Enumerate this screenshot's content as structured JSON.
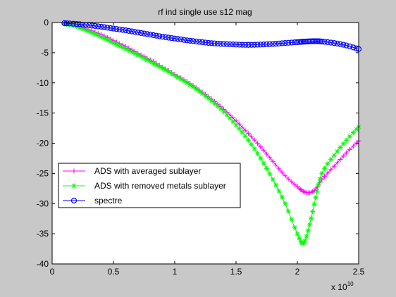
{
  "chart_data": {
    "type": "line",
    "title": "rf ind single use s12 mag",
    "xlabel": "",
    "ylabel": "",
    "x_exponent_label": "x 10",
    "x_exponent_power": "10",
    "xlim": [
      0,
      2.5
    ],
    "ylim": [
      -40,
      0
    ],
    "xticks": [
      0,
      0.5,
      1,
      1.5,
      2,
      2.5
    ],
    "xtick_labels": [
      "0",
      "0.5",
      "1",
      "1.5",
      "2",
      "2.5"
    ],
    "yticks": [
      0,
      -5,
      -10,
      -15,
      -20,
      -25,
      -30,
      -35,
      -40
    ],
    "ytick_labels": [
      "0",
      "-5",
      "-10",
      "-15",
      "-20",
      "-25",
      "-30",
      "-35",
      "-40"
    ],
    "grid": false,
    "legend_position": "lower-left",
    "x": [
      0.1,
      0.2,
      0.3,
      0.4,
      0.5,
      0.6,
      0.7,
      0.8,
      0.9,
      1.0,
      1.1,
      1.2,
      1.3,
      1.4,
      1.5,
      1.6,
      1.7,
      1.8,
      1.9,
      2.0,
      2.05,
      2.1,
      2.15,
      2.2,
      2.3,
      2.4,
      2.5
    ],
    "series": [
      {
        "name": "ADS with averaged sublayer",
        "color": "#ff00ff",
        "marker": "plus",
        "values": [
          -0.2,
          -0.6,
          -1.2,
          -2.0,
          -3.0,
          -4.0,
          -5.1,
          -6.2,
          -7.4,
          -8.6,
          -9.8,
          -11.2,
          -12.7,
          -14.4,
          -16.3,
          -18.4,
          -20.6,
          -23.0,
          -25.4,
          -27.2,
          -28.0,
          -28.2,
          -27.6,
          -26.0,
          -23.8,
          -21.6,
          -19.6
        ]
      },
      {
        "name": "ADS with removed metals sublayer",
        "color": "#00ff00",
        "marker": "asterisk",
        "values": [
          -0.2,
          -0.7,
          -1.5,
          -2.4,
          -3.4,
          -4.4,
          -5.4,
          -6.5,
          -7.6,
          -8.8,
          -10.0,
          -11.4,
          -13.0,
          -14.8,
          -17.0,
          -19.5,
          -22.5,
          -26.0,
          -30.0,
          -35.0,
          -36.6,
          -33.5,
          -29.0,
          -25.0,
          -22.0,
          -19.5,
          -17.3
        ]
      },
      {
        "name": "spectre",
        "color": "#0000ff",
        "marker": "circle",
        "values": [
          -0.1,
          -0.25,
          -0.45,
          -0.7,
          -1.0,
          -1.3,
          -1.65,
          -2.0,
          -2.35,
          -2.65,
          -2.95,
          -3.2,
          -3.42,
          -3.55,
          -3.65,
          -3.7,
          -3.65,
          -3.55,
          -3.4,
          -3.25,
          -3.18,
          -3.12,
          -3.1,
          -3.15,
          -3.4,
          -3.8,
          -4.4
        ]
      }
    ]
  }
}
